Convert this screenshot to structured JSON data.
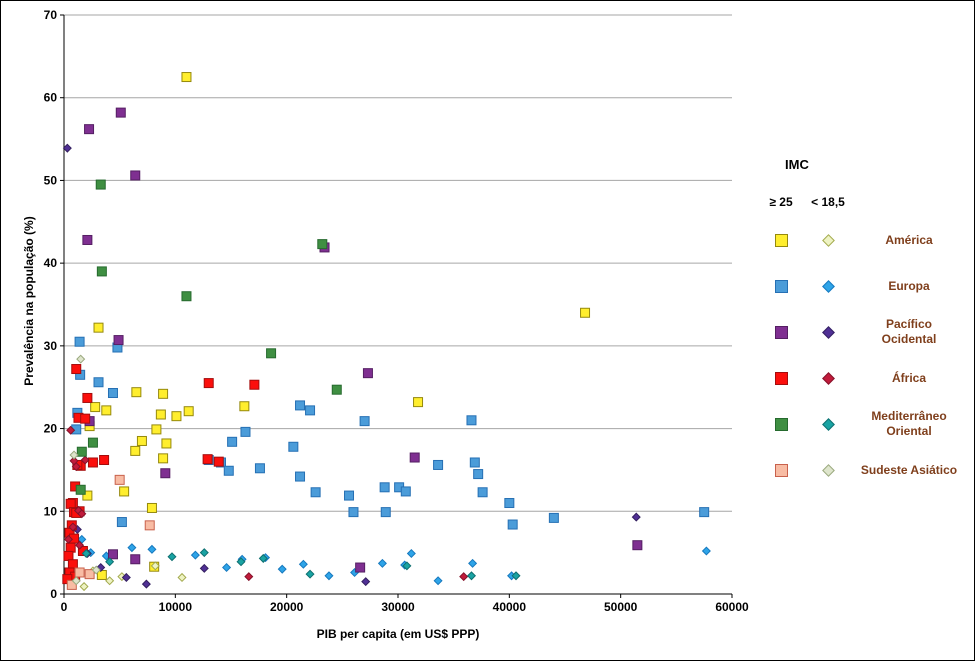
{
  "chart_data": {
    "type": "scatter",
    "title": "",
    "xlabel": "PIB per capita (em US$ PPP)",
    "ylabel": "Prevalência na população (%)",
    "xlim": [
      0,
      60000
    ],
    "ylim": [
      0,
      70
    ],
    "x_ticks": [
      0,
      10000,
      20000,
      30000,
      40000,
      50000,
      60000
    ],
    "y_ticks": [
      0,
      10,
      20,
      30,
      40,
      50,
      60,
      70
    ],
    "grid": "horizontal-only",
    "gridline_color": "#A6A6A6",
    "axis_color": "#000000",
    "legend": {
      "title": "IMC",
      "col_headers": [
        "≥ 25",
        "< 18,5"
      ],
      "label_color": "#7F3F1C",
      "entries": [
        {
          "region": "america",
          "label": "América"
        },
        {
          "region": "europa",
          "label": "Europa"
        },
        {
          "region": "pacifico",
          "label": "Pacífico Ocidental"
        },
        {
          "region": "africa",
          "label": "África"
        },
        {
          "region": "mediterraneo",
          "label": "Mediterrâneo Oriental"
        },
        {
          "region": "sudeste",
          "label": "Sudeste Asiático"
        }
      ]
    },
    "series": [
      {
        "name": "América ≥ 25",
        "region": "america",
        "bmi": "≥ 25",
        "marker": "square",
        "fill": "#FFEE2E",
        "stroke": "#95890D",
        "points": [
          [
            11000,
            62.5
          ],
          [
            46800,
            34
          ],
          [
            3100,
            32.2
          ],
          [
            6500,
            24.4
          ],
          [
            8900,
            24.2
          ],
          [
            31800,
            23.2
          ],
          [
            16200,
            22.7
          ],
          [
            2800,
            22.6
          ],
          [
            3800,
            22.2
          ],
          [
            11200,
            22.1
          ],
          [
            8700,
            21.7
          ],
          [
            10100,
            21.5
          ],
          [
            2300,
            20.3
          ],
          [
            8300,
            19.9
          ],
          [
            7000,
            18.5
          ],
          [
            9200,
            18.2
          ],
          [
            6400,
            17.3
          ],
          [
            8900,
            16.4
          ],
          [
            5400,
            12.4
          ],
          [
            2100,
            11.9
          ],
          [
            7900,
            10.4
          ],
          [
            8100,
            3.3
          ],
          [
            3400,
            2.3
          ]
        ]
      },
      {
        "name": "América < 18,5",
        "region": "america",
        "bmi": "< 18,5",
        "marker": "diamond",
        "fill": "#EEF3C3",
        "stroke": "#A3AA4E",
        "points": [
          [
            1800,
            0.9
          ],
          [
            2600,
            2.8
          ],
          [
            4100,
            1.6
          ],
          [
            5200,
            2.1
          ],
          [
            8200,
            3.4
          ],
          [
            10600,
            2.0
          ]
        ]
      },
      {
        "name": "Europa ≥ 25",
        "region": "europa",
        "bmi": "≥ 25",
        "marker": "square",
        "fill": "#4B9CD9",
        "stroke": "#2670B4",
        "points": [
          [
            1400,
            30.5
          ],
          [
            4800,
            29.8
          ],
          [
            1450,
            26.5
          ],
          [
            3100,
            25.6
          ],
          [
            4400,
            24.3
          ],
          [
            21200,
            22.8
          ],
          [
            22100,
            22.2
          ],
          [
            1200,
            21.9
          ],
          [
            36600,
            21.0
          ],
          [
            27000,
            20.9
          ],
          [
            16300,
            19.6
          ],
          [
            1100,
            19.9
          ],
          [
            15100,
            18.4
          ],
          [
            20600,
            17.8
          ],
          [
            13000,
            16.2
          ],
          [
            14100,
            15.9
          ],
          [
            36900,
            15.9
          ],
          [
            33600,
            15.6
          ],
          [
            17600,
            15.2
          ],
          [
            14800,
            14.9
          ],
          [
            37200,
            14.5
          ],
          [
            21200,
            14.2
          ],
          [
            28800,
            12.9
          ],
          [
            30100,
            12.9
          ],
          [
            22600,
            12.3
          ],
          [
            37600,
            12.3
          ],
          [
            30700,
            12.4
          ],
          [
            25600,
            11.9
          ],
          [
            40000,
            11.0
          ],
          [
            26000,
            9.9
          ],
          [
            28900,
            9.9
          ],
          [
            57500,
            9.9
          ],
          [
            44000,
            9.2
          ],
          [
            40300,
            8.4
          ],
          [
            5200,
            8.7
          ]
        ]
      },
      {
        "name": "Europa < 18,5",
        "region": "europa",
        "bmi": "< 18,5",
        "marker": "diamond",
        "fill": "#2EA4E8",
        "stroke": "#1779BE",
        "points": [
          [
            1600,
            6.6
          ],
          [
            2400,
            5.0
          ],
          [
            3800,
            4.6
          ],
          [
            6100,
            5.6
          ],
          [
            7900,
            5.4
          ],
          [
            11800,
            4.7
          ],
          [
            14600,
            3.2
          ],
          [
            16000,
            4.2
          ],
          [
            18100,
            4.4
          ],
          [
            19600,
            3.0
          ],
          [
            21500,
            3.6
          ],
          [
            23800,
            2.2
          ],
          [
            26100,
            2.6
          ],
          [
            28600,
            3.7
          ],
          [
            30600,
            3.5
          ],
          [
            31200,
            4.9
          ],
          [
            33600,
            1.6
          ],
          [
            36700,
            3.7
          ],
          [
            40200,
            2.2
          ],
          [
            57700,
            5.2
          ]
        ]
      },
      {
        "name": "Pacífico Ocidental ≥ 25",
        "region": "pacifico",
        "bmi": "≥ 25",
        "marker": "square",
        "fill": "#7F2F91",
        "stroke": "#551F63",
        "points": [
          [
            5100,
            58.2
          ],
          [
            2250,
            56.2
          ],
          [
            6400,
            50.6
          ],
          [
            2100,
            42.8
          ],
          [
            23400,
            41.9
          ],
          [
            4900,
            30.7
          ],
          [
            27300,
            26.7
          ],
          [
            2300,
            20.9
          ],
          [
            31500,
            16.5
          ],
          [
            9100,
            14.6
          ],
          [
            51500,
            5.9
          ],
          [
            26600,
            3.2
          ],
          [
            4400,
            4.8
          ],
          [
            6400,
            4.2
          ]
        ]
      },
      {
        "name": "Pacífico Ocidental < 18,5",
        "region": "pacifico",
        "bmi": "< 18,5",
        "marker": "diamond",
        "fill": "#503095",
        "stroke": "#342060",
        "points": [
          [
            300,
            53.9
          ],
          [
            51400,
            9.3
          ],
          [
            1200,
            7.8
          ],
          [
            2100,
            4.9
          ],
          [
            3300,
            3.2
          ],
          [
            5600,
            2.0
          ],
          [
            7400,
            1.2
          ],
          [
            12600,
            3.1
          ],
          [
            27100,
            1.5
          ]
        ]
      },
      {
        "name": "África ≥ 25",
        "region": "africa",
        "bmi": "≥ 25",
        "marker": "square",
        "fill": "#FB0F0C",
        "stroke": "#A50D0D",
        "points": [
          [
            1100,
            27.2
          ],
          [
            13000,
            25.5
          ],
          [
            17100,
            25.3
          ],
          [
            2100,
            23.7
          ],
          [
            1300,
            21.3
          ],
          [
            1900,
            21.2
          ],
          [
            12900,
            16.3
          ],
          [
            13900,
            16.0
          ],
          [
            3600,
            16.2
          ],
          [
            2600,
            15.9
          ],
          [
            1500,
            15.5
          ],
          [
            1200,
            15.6
          ],
          [
            1000,
            13.0
          ],
          [
            1400,
            10.0
          ],
          [
            800,
            11.0
          ],
          [
            600,
            10.9
          ],
          [
            900,
            9.9
          ],
          [
            1100,
            9.8
          ],
          [
            700,
            8.3
          ],
          [
            500,
            7.4
          ],
          [
            900,
            6.7
          ],
          [
            600,
            5.6
          ],
          [
            1700,
            5.2
          ],
          [
            400,
            4.6
          ],
          [
            800,
            3.6
          ],
          [
            500,
            2.6
          ],
          [
            1000,
            2.1
          ],
          [
            300,
            1.8
          ]
        ]
      },
      {
        "name": "África < 18,5",
        "region": "africa",
        "bmi": "< 18,5",
        "marker": "diamond",
        "fill": "#C11B3B",
        "stroke": "#84122A",
        "points": [
          [
            600,
            19.8
          ],
          [
            1900,
            16.2
          ],
          [
            900,
            16.1
          ],
          [
            1100,
            15.4
          ],
          [
            1300,
            10.1
          ],
          [
            1600,
            9.7
          ],
          [
            800,
            8.1
          ],
          [
            400,
            6.6
          ],
          [
            1400,
            5.9
          ],
          [
            35900,
            2.1
          ],
          [
            16600,
            2.1
          ]
        ]
      },
      {
        "name": "Mediterrâneo Oriental ≥ 25",
        "region": "mediterraneo",
        "bmi": "≥ 25",
        "marker": "square",
        "fill": "#3F8F42",
        "stroke": "#266A2E",
        "points": [
          [
            3300,
            49.5
          ],
          [
            3400,
            39.0
          ],
          [
            11000,
            36.0
          ],
          [
            23200,
            42.3
          ],
          [
            18600,
            29.1
          ],
          [
            24500,
            24.7
          ],
          [
            2600,
            18.3
          ],
          [
            1600,
            17.2
          ],
          [
            1500,
            12.6
          ]
        ]
      },
      {
        "name": "Mediterrâneo Oriental < 18,5",
        "region": "mediterraneo",
        "bmi": "< 18,5",
        "marker": "diamond",
        "fill": "#19A3A3",
        "stroke": "#0F6F70",
        "points": [
          [
            2000,
            4.9
          ],
          [
            4100,
            3.9
          ],
          [
            9700,
            4.5
          ],
          [
            12600,
            5.0
          ],
          [
            15900,
            3.9
          ],
          [
            17900,
            4.3
          ],
          [
            22100,
            2.4
          ],
          [
            30800,
            3.4
          ],
          [
            36600,
            2.2
          ],
          [
            40600,
            2.2
          ]
        ]
      },
      {
        "name": "Sudeste Asiático ≥ 25",
        "region": "sudeste",
        "bmi": "≥ 25",
        "marker": "square",
        "fill": "#F8BCA4",
        "stroke": "#C8614C",
        "points": [
          [
            5000,
            13.8
          ],
          [
            7700,
            8.3
          ],
          [
            1400,
            2.6
          ],
          [
            2300,
            2.4
          ],
          [
            700,
            1.1
          ]
        ]
      },
      {
        "name": "Sudeste Asiático < 18,5",
        "region": "sudeste",
        "bmi": "< 18,5",
        "marker": "diamond",
        "fill": "#DEE5CC",
        "stroke": "#9AA87E",
        "points": [
          [
            1500,
            28.4
          ],
          [
            900,
            16.8
          ],
          [
            2900,
            2.9
          ],
          [
            1100,
            1.6
          ]
        ]
      }
    ]
  }
}
